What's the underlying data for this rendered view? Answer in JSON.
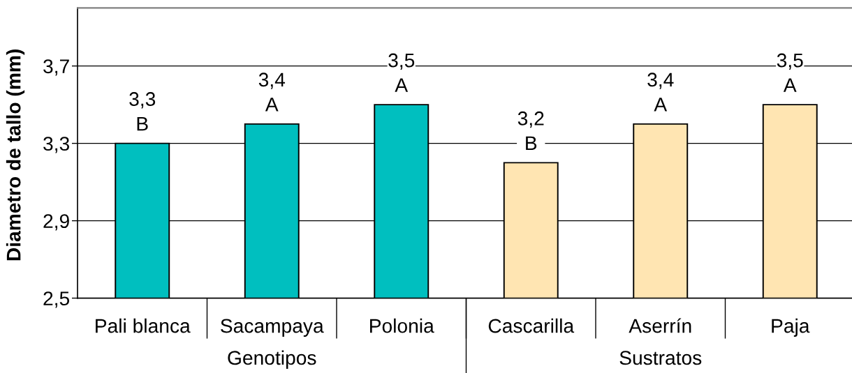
{
  "chart_data": {
    "type": "bar",
    "ylabel": "Diametro de tallo (mm)",
    "categories": [
      "Pali blanca",
      "Sacampaya",
      "Polonia",
      "Cascarilla",
      "Aserrín",
      "Paja"
    ],
    "series": [
      {
        "name": "Genotipos",
        "color": "#00bfbf",
        "values": [
          3.3,
          3.4,
          3.5,
          null,
          null,
          null
        ],
        "value_labels": [
          "3,3\nB",
          "3,4\nA",
          "3,5\nA",
          null,
          null,
          null
        ]
      },
      {
        "name": "Sustratos",
        "color": "#ffe5b2",
        "values": [
          null,
          null,
          null,
          3.2,
          3.4,
          3.5
        ],
        "value_labels": [
          null,
          null,
          null,
          "3,2\nB",
          "3,4\nA",
          "3,5\nA"
        ]
      }
    ],
    "ylim": [
      2.5,
      4.0
    ],
    "yticks": [
      {
        "value": 2.5,
        "label": "2,5"
      },
      {
        "value": 2.9,
        "label": "2,9"
      },
      {
        "value": 3.3,
        "label": "3,3"
      },
      {
        "value": 3.7,
        "label": "3,7"
      }
    ],
    "grid": "y"
  }
}
